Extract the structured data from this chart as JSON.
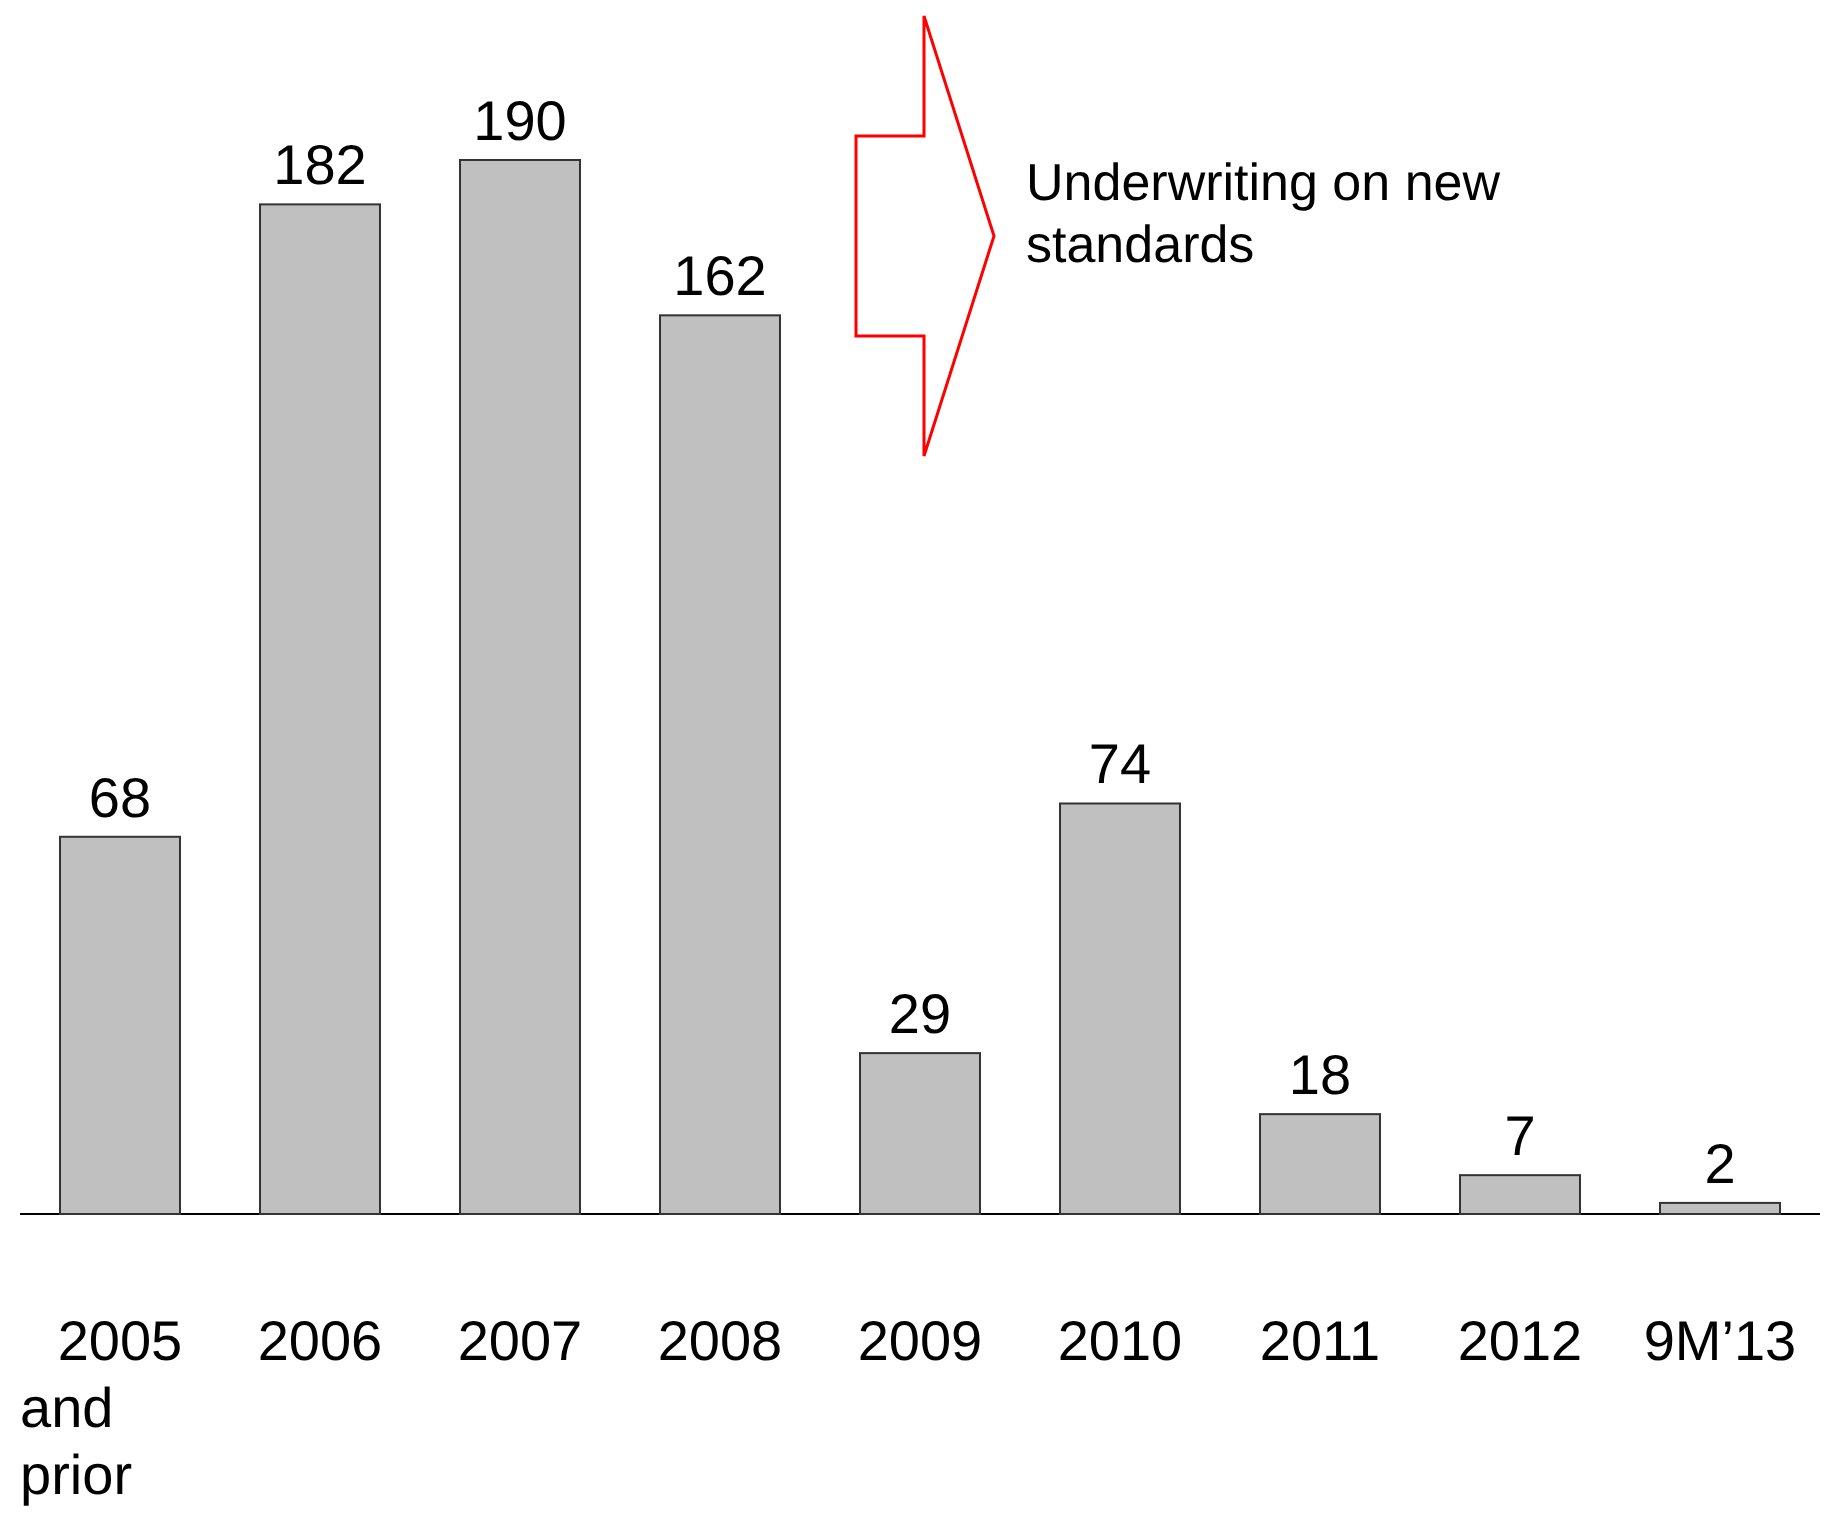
{
  "chart_data": {
    "type": "bar",
    "categories": [
      "2005 and prior",
      "2006",
      "2007",
      "2008",
      "2009",
      "2010",
      "2011",
      "2012",
      "9M’13"
    ],
    "values": [
      68,
      182,
      190,
      162,
      29,
      74,
      18,
      7,
      2
    ],
    "color": "#c0c0c0",
    "data_labels": true,
    "annotations": [
      "Underwriting on new standards"
    ]
  }
}
